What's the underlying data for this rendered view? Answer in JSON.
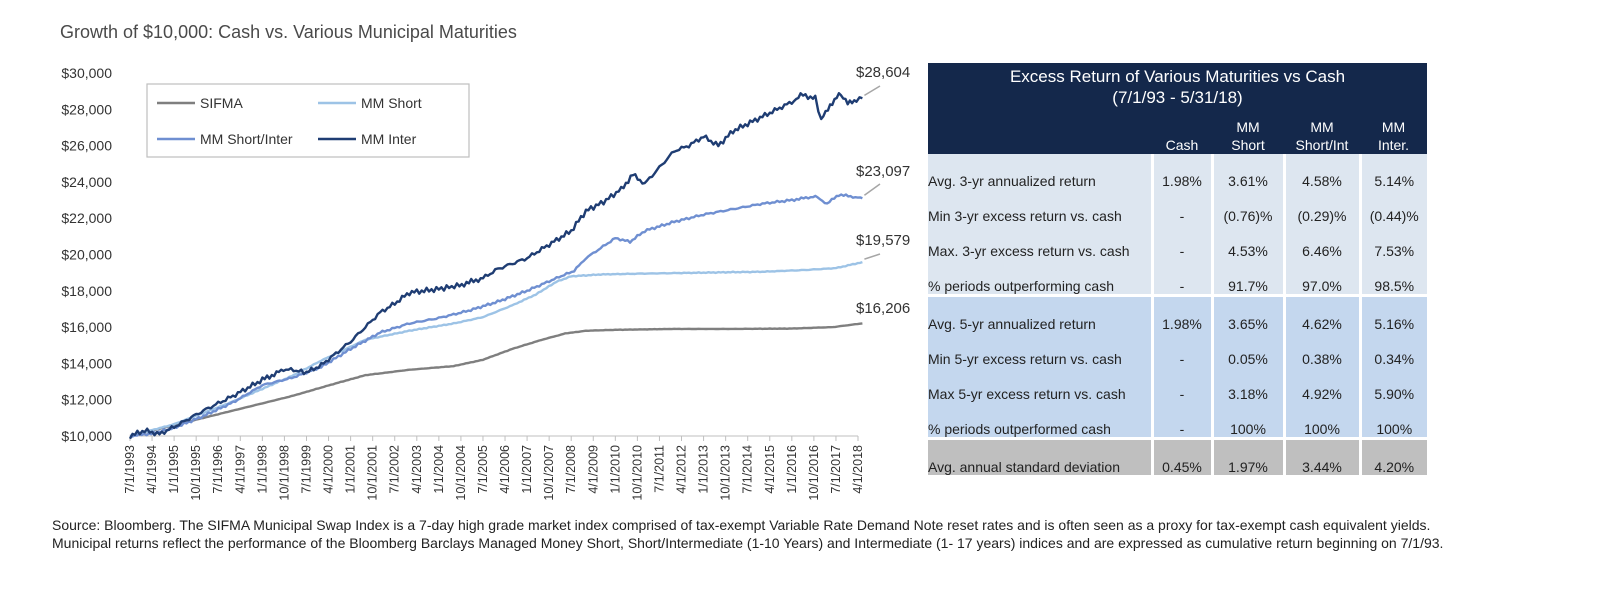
{
  "title": "Growth of $10,000:  Cash vs. Various Municipal Maturities",
  "chart_data": {
    "type": "line",
    "title": "Growth of $10,000:  Cash vs. Various Municipal Maturities",
    "ylim": [
      10000,
      30000
    ],
    "yticks": [
      "$10,000",
      "$12,000",
      "$14,000",
      "$16,000",
      "$18,000",
      "$20,000",
      "$22,000",
      "$24,000",
      "$26,000",
      "$28,000",
      "$30,000"
    ],
    "x_ticks": [
      "7/1/1993",
      "4/1/1994",
      "1/1/1995",
      "10/1/1995",
      "7/1/1996",
      "4/1/1997",
      "1/1/1998",
      "10/1/1998",
      "7/1/1999",
      "4/1/2000",
      "1/1/2001",
      "10/1/2001",
      "7/1/2002",
      "4/1/2003",
      "1/1/2004",
      "10/1/2004",
      "7/1/2005",
      "4/1/2006",
      "1/1/2007",
      "10/1/2007",
      "7/1/2008",
      "4/1/2009",
      "1/1/2010",
      "10/1/2010",
      "7/1/2011",
      "4/1/2012",
      "1/1/2013",
      "10/1/2013",
      "7/1/2014",
      "4/1/2015",
      "1/1/2016",
      "10/1/2016",
      "7/1/2017",
      "4/1/2018"
    ],
    "legend": "top-left",
    "grid": false,
    "series": [
      {
        "name": "SIFMA",
        "color": "#7f7f7f",
        "end_label": "$16,206",
        "x": [
          1993.5,
          1995,
          1997,
          1999,
          2000.5,
          2001.5,
          2003,
          2004.5,
          2005.5,
          2006.5,
          2007.5,
          2008.3,
          2009,
          2010,
          2012,
          2014,
          2016,
          2017.4,
          2018.4
        ],
        "y": [
          10000,
          10600,
          11400,
          12200,
          12900,
          13350,
          13650,
          13850,
          14200,
          14800,
          15300,
          15650,
          15800,
          15850,
          15900,
          15900,
          15920,
          16000,
          16206
        ]
      },
      {
        "name": "MM Short",
        "color": "#9dc3e6",
        "end_label": "$19,579",
        "x": [
          1993.5,
          1995,
          1997,
          1999,
          2000,
          2001.5,
          2003,
          2004.5,
          2005.5,
          2006.5,
          2007.3,
          2008,
          2008.5,
          2009.5,
          2011,
          2013,
          2015,
          2016.5,
          2017.5,
          2018.4
        ],
        "y": [
          10000,
          10650,
          11900,
          13300,
          14150,
          15300,
          15800,
          16200,
          16550,
          17200,
          17800,
          18500,
          18800,
          18900,
          18950,
          19000,
          19050,
          19150,
          19250,
          19579
        ]
      },
      {
        "name": "MM Short/Inter",
        "color": "#6f8fd1",
        "end_label": "$23,097",
        "x": [
          1993.5,
          1994.3,
          1995,
          1996,
          1997,
          1998,
          1999,
          2000,
          2001,
          2002,
          2003,
          2004,
          2005,
          2006,
          2007,
          2008,
          2008.6,
          2009,
          2010,
          2010.5,
          2011,
          2012,
          2013,
          2014,
          2015,
          2016,
          2016.8,
          2017.2,
          2017.6,
          2018.4
        ],
        "y": [
          10000,
          10150,
          10450,
          11100,
          11850,
          12800,
          13200,
          13800,
          14800,
          15700,
          16200,
          16500,
          16900,
          17400,
          18000,
          18700,
          19100,
          19800,
          20900,
          20700,
          21300,
          21800,
          22200,
          22500,
          22800,
          23000,
          23200,
          22800,
          23300,
          23097
        ]
      },
      {
        "name": "MM Inter",
        "color": "#1f3d73",
        "end_label": "$28,604",
        "x": [
          1993.5,
          1994,
          1994.5,
          1995,
          1996,
          1997,
          1998,
          1998.8,
          1999.5,
          2000,
          2001,
          2002,
          2002.5,
          2003,
          2004,
          2004.7,
          2005.5,
          2006,
          2007,
          2008,
          2008.5,
          2009,
          2009.6,
          2010.2,
          2010.6,
          2011,
          2011.5,
          2012,
          2012.5,
          2013,
          2013.5,
          2014,
          2014.5,
          2015,
          2015.5,
          2016,
          2016.3,
          2016.8,
          2017,
          2017.3,
          2017.6,
          2017.9,
          2018.2,
          2018.4
        ],
        "y": [
          10000,
          10300,
          10100,
          10500,
          11400,
          12200,
          13100,
          13700,
          13500,
          13900,
          15200,
          16800,
          17300,
          17900,
          18100,
          18300,
          18700,
          19200,
          19800,
          20800,
          21300,
          22400,
          22900,
          23600,
          24400,
          23900,
          24800,
          25700,
          26000,
          26500,
          26000,
          26800,
          27200,
          27600,
          28000,
          28400,
          28800,
          28600,
          27400,
          28200,
          28900,
          28300,
          28500,
          28604
        ]
      }
    ]
  },
  "legend": {
    "items": [
      {
        "name": "SIFMA",
        "color": "#7f7f7f"
      },
      {
        "name": "MM Short",
        "color": "#9dc3e6"
      },
      {
        "name": "MM Short/Inter",
        "color": "#6f8fd1"
      },
      {
        "name": "MM Inter",
        "color": "#1f3d73"
      }
    ]
  },
  "table": {
    "title_line1": "Excess Return of Various Maturities vs Cash",
    "title_line2": "(7/1/93 - 5/31/18)",
    "columns": [
      {
        "line1": "",
        "line2": "Cash"
      },
      {
        "line1": "MM",
        "line2": "Short"
      },
      {
        "line1": "MM",
        "line2": "Short/Int"
      },
      {
        "line1": "MM",
        "line2": "Inter."
      }
    ],
    "rows": [
      {
        "label": "Avg. 3-yr annualized return",
        "values": [
          "1.98%",
          "3.61%",
          "4.58%",
          "5.14%"
        ]
      },
      {
        "label": "Min 3-yr excess return vs. cash",
        "values": [
          "-",
          "(0.76)%",
          "(0.29)%",
          "(0.44)%"
        ]
      },
      {
        "label": "Max. 3-yr excess return vs. cash",
        "values": [
          "-",
          "4.53%",
          "6.46%",
          "7.53%"
        ]
      },
      {
        "label": "% periods outperforming cash",
        "values": [
          "-",
          "91.7%",
          "97.0%",
          "98.5%"
        ]
      },
      {
        "label": "Avg. 5-yr annualized return",
        "values": [
          "1.98%",
          "3.65%",
          "4.62%",
          "5.16%"
        ]
      },
      {
        "label": "Min 5-yr excess return vs. cash",
        "values": [
          "-",
          "0.05%",
          "0.38%",
          "0.34%"
        ]
      },
      {
        "label": "Max 5-yr excess return vs. cash",
        "values": [
          "-",
          "3.18%",
          "4.92%",
          "5.90%"
        ]
      },
      {
        "label": "% periods outperformed cash",
        "values": [
          "-",
          "100%",
          "100%",
          "100%"
        ]
      },
      {
        "label": "Avg. annual standard deviation",
        "values": [
          "0.45%",
          "1.97%",
          "3.44%",
          "4.20%"
        ]
      }
    ]
  },
  "source_note": "Source: Bloomberg.  The SIFMA Municipal Swap Index is a 7-day high grade market index comprised of tax-exempt Variable Rate Demand Note reset rates and is often seen as a proxy for tax-exempt cash equivalent yields.  Municipal returns reflect the performance of the Bloomberg Barclays Managed Money Short, Short/Intermediate (1-10 Years) and Intermediate (1- 17 years) indices and are expressed as cumulative return beginning on 7/1/93."
}
